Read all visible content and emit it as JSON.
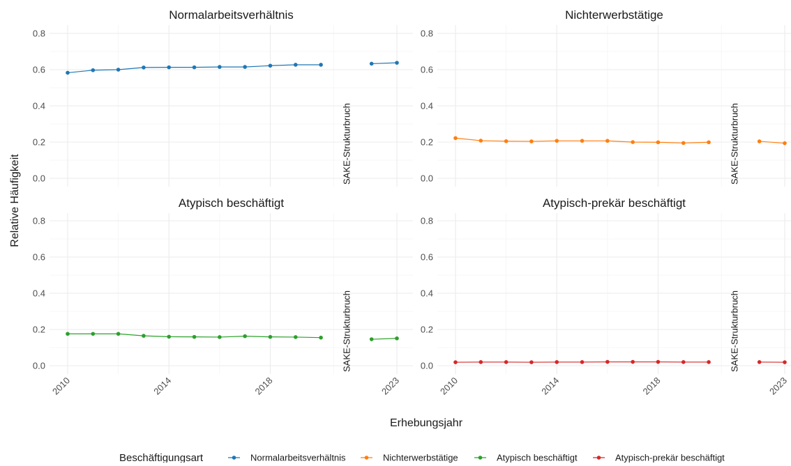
{
  "chart_data": {
    "type": "line",
    "xlabel": "Erhebungsjahr",
    "ylabel": "Relative Häufigkeit",
    "ylim": [
      0,
      0.8
    ],
    "yticks": [
      0.0,
      0.2,
      0.4,
      0.6,
      0.8
    ],
    "ytick_labels": [
      "0.0",
      "0.2",
      "0.4",
      "0.6",
      "0.8"
    ],
    "xlim": [
      2010,
      2023
    ],
    "xticks": [
      2010,
      2014,
      2018,
      2023
    ],
    "xtick_labels": [
      "2010",
      "2014",
      "2018",
      "2023"
    ],
    "grid": true,
    "annotation": "SAKE-Strukturbruch",
    "annotation_x": 2021,
    "legend": {
      "title": "Beschäftigungsart",
      "position": "bottom"
    },
    "panels": [
      {
        "title": "Normalarbeitsverhältnis",
        "color": "#1f77b4",
        "segments": [
          {
            "x": [
              2010,
              2011,
              2012,
              2013,
              2014,
              2015,
              2016,
              2017,
              2018,
              2019,
              2020
            ],
            "y": [
              0.583,
              0.597,
              0.6,
              0.612,
              0.613,
              0.613,
              0.615,
              0.615,
              0.622,
              0.627,
              0.627
            ]
          },
          {
            "x": [
              2022,
              2023
            ],
            "y": [
              0.633,
              0.638
            ]
          }
        ]
      },
      {
        "title": "Nichterwerbstätige",
        "color": "#ff7f0e",
        "segments": [
          {
            "x": [
              2010,
              2011,
              2012,
              2013,
              2014,
              2015,
              2016,
              2017,
              2018,
              2019,
              2020
            ],
            "y": [
              0.222,
              0.208,
              0.205,
              0.204,
              0.207,
              0.207,
              0.207,
              0.2,
              0.199,
              0.195,
              0.199
            ]
          },
          {
            "x": [
              2022,
              2023
            ],
            "y": [
              0.204,
              0.194
            ]
          }
        ]
      },
      {
        "title": "Atypisch beschäftigt",
        "color": "#2ca02c",
        "segments": [
          {
            "x": [
              2010,
              2011,
              2012,
              2013,
              2014,
              2015,
              2016,
              2017,
              2018,
              2019,
              2020
            ],
            "y": [
              0.176,
              0.176,
              0.176,
              0.165,
              0.16,
              0.159,
              0.158,
              0.163,
              0.159,
              0.158,
              0.155
            ]
          },
          {
            "x": [
              2022,
              2023
            ],
            "y": [
              0.146,
              0.151
            ]
          }
        ]
      },
      {
        "title": "Atypisch-prekär beschäftigt",
        "color": "#d62728",
        "segments": [
          {
            "x": [
              2010,
              2011,
              2012,
              2013,
              2014,
              2015,
              2016,
              2017,
              2018,
              2019,
              2020
            ],
            "y": [
              0.019,
              0.02,
              0.02,
              0.019,
              0.02,
              0.02,
              0.021,
              0.021,
              0.021,
              0.02,
              0.02
            ]
          },
          {
            "x": [
              2022,
              2023
            ],
            "y": [
              0.02,
              0.019
            ]
          }
        ]
      }
    ]
  }
}
